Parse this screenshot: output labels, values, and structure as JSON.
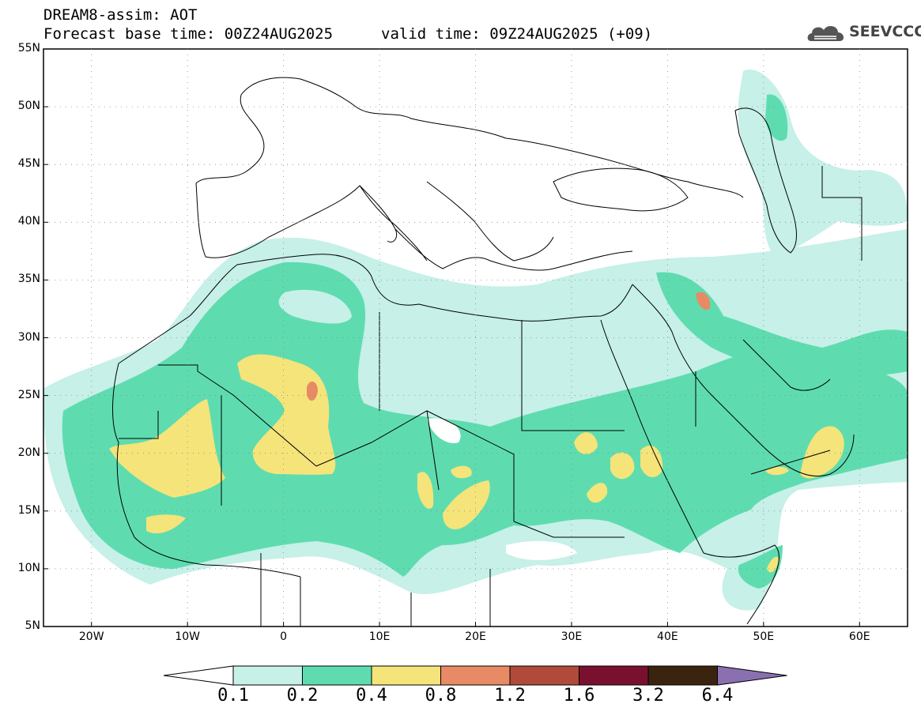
{
  "header": {
    "title_line1": "DREAM8-assim: AOT",
    "title_line2": "Forecast base time: 00Z24AUG2025",
    "valid_time": "valid time: 09Z24AUG2025 (+09)",
    "logo_text": "SEEVCCC"
  },
  "axes": {
    "lat_labels": [
      "55N",
      "50N",
      "45N",
      "40N",
      "35N",
      "30N",
      "25N",
      "20N",
      "15N",
      "10N",
      "5N"
    ],
    "lon_labels": [
      "20W",
      "10W",
      "0",
      "10E",
      "20E",
      "30E",
      "40E",
      "50E",
      "60E"
    ]
  },
  "colorbar": {
    "labels": [
      "0.1",
      "0.2",
      "0.4",
      "0.8",
      "1.2",
      "1.6",
      "3.2",
      "6.4"
    ],
    "colors": [
      "#c6f0e8",
      "#5edcb0",
      "#f5e47a",
      "#e88a66",
      "#b04a3a",
      "#7a1030",
      "#3a2410",
      "#8a70b0"
    ]
  },
  "map_colors": {
    "level1": "#c6f0e8",
    "level2": "#5edcb0",
    "level3": "#f5e47a",
    "level4": "#e88a66"
  }
}
